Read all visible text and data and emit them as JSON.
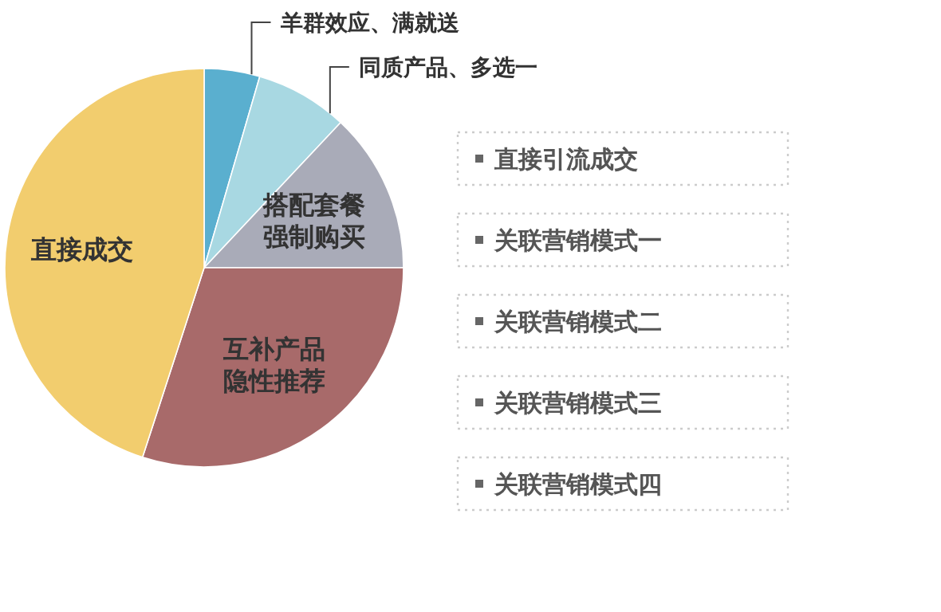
{
  "chart_data": {
    "type": "pie",
    "categories": [
      "羊群效应、满就送",
      "同质产品、多选一",
      "搭配套餐强制购买",
      "互补产品隐性推荐",
      "直接成交"
    ],
    "values": [
      4.5,
      7.5,
      13,
      30,
      45
    ],
    "colors": [
      "#5aafcf",
      "#a8d8e2",
      "#a9abb8",
      "#a86a6a",
      "#f2cd6e"
    ],
    "annotations": [
      "直接引流成交",
      "关联营销模式一",
      "关联营销模式二",
      "关联营销模式三",
      "关联营销模式四"
    ]
  }
}
